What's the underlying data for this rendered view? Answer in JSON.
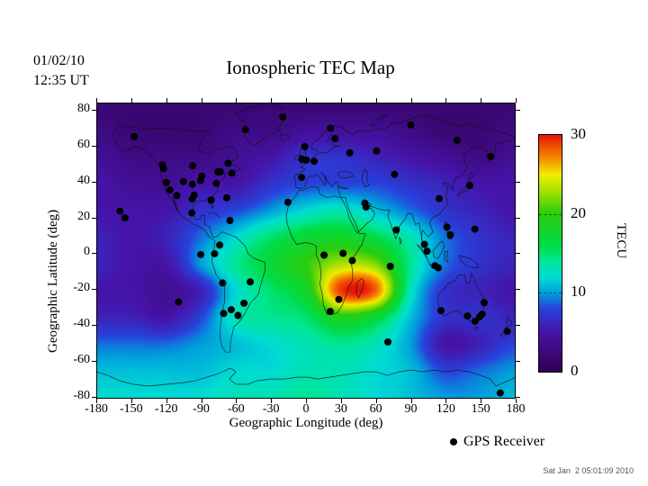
{
  "header": {
    "date": "01/02/10",
    "time": "12:35 UT",
    "title": "Ionospheric TEC Map"
  },
  "axes": {
    "x_label": "Geographic Longitude (deg)",
    "y_label": "Geographic Latitude (deg)",
    "x_ticks": [
      -180,
      -150,
      -120,
      -90,
      -60,
      -30,
      0,
      30,
      60,
      90,
      120,
      150,
      180
    ],
    "y_ticks": [
      80,
      60,
      40,
      20,
      0,
      -20,
      -40,
      -60,
      -80
    ]
  },
  "colorbar": {
    "label": "TECU",
    "ticks": [
      30,
      20,
      10,
      0
    ],
    "min": 0,
    "max": 30,
    "dashed_lines_at": [
      10,
      20
    ],
    "stops": [
      {
        "v": 0,
        "c": "#320050"
      },
      {
        "v": 5,
        "c": "#4613a8"
      },
      {
        "v": 8,
        "c": "#2841dc"
      },
      {
        "v": 10,
        "c": "#00a0dc"
      },
      {
        "v": 12,
        "c": "#00dcd2"
      },
      {
        "v": 14,
        "c": "#00e696"
      },
      {
        "v": 16,
        "c": "#00dc46"
      },
      {
        "v": 20,
        "c": "#28cd0f"
      },
      {
        "v": 23,
        "c": "#aae100"
      },
      {
        "v": 25,
        "c": "#f0eb00"
      },
      {
        "v": 27,
        "c": "#f58c00"
      },
      {
        "v": 29,
        "c": "#f03c05"
      },
      {
        "v": 30,
        "c": "#e6140a"
      }
    ]
  },
  "legend": {
    "marker": "black-dot",
    "label": "GPS Receiver"
  },
  "footer": {
    "timestamp": "Sat Jan  2 05:01:09 2010"
  },
  "chart_data": {
    "type": "heatmap",
    "title": "Ionospheric TEC Map",
    "units": "TECU",
    "xlabel": "Geographic Longitude (deg)",
    "ylabel": "Geographic Latitude (deg)",
    "xlim": [
      -180,
      180
    ],
    "ylim": [
      -81,
      84
    ],
    "value_range": [
      0,
      30
    ],
    "grid_lon": [
      -180,
      -150,
      -120,
      -90,
      -60,
      -30,
      0,
      30,
      60,
      90,
      120,
      150,
      180
    ],
    "grid_lat": [
      84,
      69,
      54,
      39,
      24,
      9,
      -6,
      -21,
      -36,
      -51,
      -66,
      -81
    ],
    "tec_values": [
      [
        2,
        2,
        2,
        2,
        2,
        2,
        2,
        2,
        2,
        2,
        2,
        2,
        2
      ],
      [
        3,
        2,
        2,
        2,
        3,
        3,
        4,
        4,
        4,
        3,
        2,
        2,
        3
      ],
      [
        4,
        3,
        3,
        3,
        4,
        5,
        7,
        7,
        6,
        5,
        4,
        3,
        4
      ],
      [
        5,
        4,
        4,
        5,
        5,
        7,
        8,
        8,
        8,
        7,
        6,
        5,
        5
      ],
      [
        5,
        5,
        5,
        7,
        8,
        10,
        12,
        13,
        11,
        9,
        7,
        6,
        5
      ],
      [
        6,
        5,
        6,
        9,
        12,
        15,
        17,
        18,
        16,
        13,
        9,
        7,
        6
      ],
      [
        6,
        5,
        5,
        10,
        14,
        17,
        20,
        23,
        22,
        14,
        9,
        7,
        6
      ],
      [
        5,
        5,
        4,
        6,
        12,
        15,
        18,
        29,
        28,
        13,
        7,
        6,
        5
      ],
      [
        6,
        6,
        5,
        8,
        13,
        14,
        15,
        19,
        17,
        11,
        7,
        7,
        6
      ],
      [
        9,
        9,
        9,
        10,
        11,
        12,
        13,
        14,
        13,
        10,
        5,
        6,
        8
      ],
      [
        11,
        11,
        11,
        11,
        12,
        12,
        13,
        13,
        12,
        11,
        8,
        9,
        10
      ],
      [
        12,
        12,
        12,
        12,
        13,
        13,
        14,
        13,
        12,
        11,
        10,
        10,
        11
      ]
    ],
    "gps_receivers": [
      [
        -147.5,
        65
      ],
      [
        -52,
        69
      ],
      [
        -20,
        76
      ],
      [
        -123.3,
        49.3
      ],
      [
        -122.3,
        47.3
      ],
      [
        -119.8,
        39.5
      ],
      [
        -116.9,
        35.3
      ],
      [
        -110.9,
        32.2
      ],
      [
        -105.2,
        40
      ],
      [
        -97.5,
        38.5
      ],
      [
        -97.3,
        48.8
      ],
      [
        -89.4,
        43.1
      ],
      [
        -90.5,
        40.5
      ],
      [
        -75.7,
        45.4
      ],
      [
        -73.6,
        45.5
      ],
      [
        -66.8,
        50.2
      ],
      [
        -63.6,
        44.7
      ],
      [
        -77,
        39
      ],
      [
        -68,
        31
      ],
      [
        -81.5,
        29.7
      ],
      [
        -97.7,
        30.3
      ],
      [
        -96,
        32.5
      ],
      [
        -98,
        22.5
      ],
      [
        -65.3,
        18.3
      ],
      [
        -159.7,
        23.5
      ],
      [
        -155.4,
        19.8
      ],
      [
        -74.1,
        4.6
      ],
      [
        -78.5,
        -0.2
      ],
      [
        -90.3,
        -0.7
      ],
      [
        -71.5,
        -16.5
      ],
      [
        -47.9,
        -15.9
      ],
      [
        -53.2,
        -27.8
      ],
      [
        -70.7,
        -33.5
      ],
      [
        -64.2,
        -31.4
      ],
      [
        -58.4,
        -34.6
      ],
      [
        -109.4,
        -27.1
      ],
      [
        21,
        69.7
      ],
      [
        25,
        64
      ],
      [
        -1,
        59.5
      ],
      [
        -3.5,
        52.5
      ],
      [
        0.3,
        52
      ],
      [
        7,
        51.3
      ],
      [
        -3.7,
        42.3
      ],
      [
        37.6,
        56
      ],
      [
        60.6,
        57
      ],
      [
        -15.5,
        28.5
      ],
      [
        50.5,
        28
      ],
      [
        51.5,
        25.8
      ],
      [
        76,
        44
      ],
      [
        90,
        71.5
      ],
      [
        129.7,
        63
      ],
      [
        158.7,
        54
      ],
      [
        140.6,
        37.8
      ],
      [
        114.3,
        30.5
      ],
      [
        77.5,
        13
      ],
      [
        121,
        14.6
      ],
      [
        123.9,
        10.3
      ],
      [
        144.9,
        13.5
      ],
      [
        101.7,
        5
      ],
      [
        104,
        1.2
      ],
      [
        15.5,
        -1
      ],
      [
        31.8,
        0
      ],
      [
        39.7,
        -4
      ],
      [
        72.4,
        -7.3
      ],
      [
        28.2,
        -25.7
      ],
      [
        20.8,
        -32.4
      ],
      [
        70.3,
        -49.4
      ],
      [
        110.7,
        -6.9
      ],
      [
        113.6,
        -8.1
      ],
      [
        115.9,
        -31.9
      ],
      [
        138.6,
        -34.9
      ],
      [
        145,
        -37.8
      ],
      [
        149.1,
        -35.3
      ],
      [
        151.2,
        -33.9
      ],
      [
        153,
        -27.5
      ],
      [
        172.7,
        -43.5
      ],
      [
        166.7,
        -77.8
      ]
    ]
  }
}
